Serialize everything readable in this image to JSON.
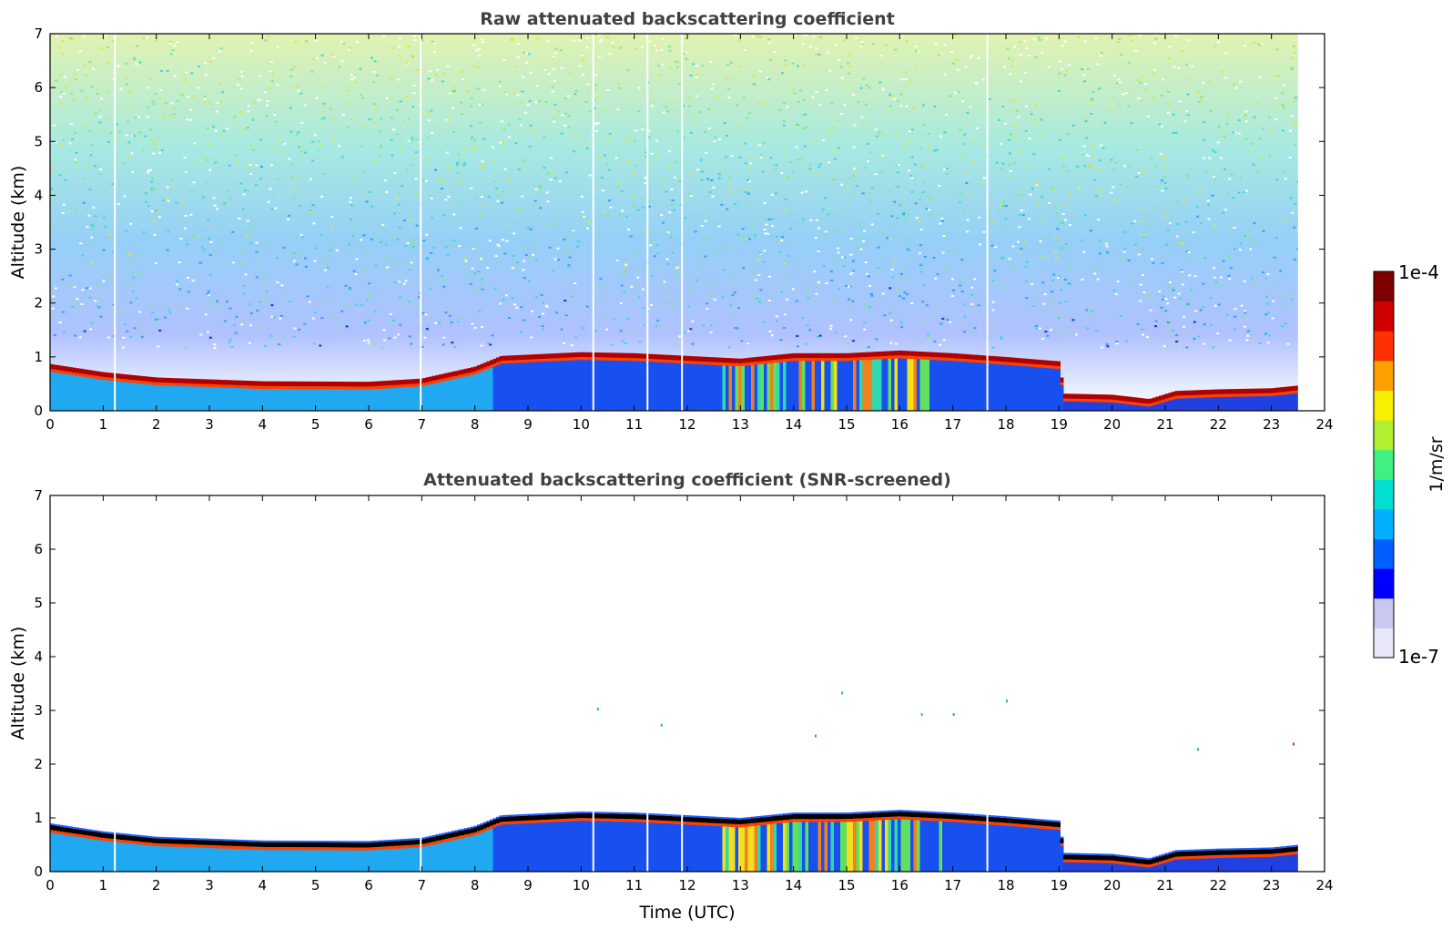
{
  "chart_data": [
    {
      "type": "heatmap",
      "title": "Raw attenuated backscattering coefficient",
      "xlabel": "",
      "ylabel": "Altitude (km)",
      "xlim": [
        0,
        24
      ],
      "ylim": [
        0,
        7
      ],
      "xticks": [
        "0",
        "1",
        "2",
        "3",
        "4",
        "5",
        "6",
        "7",
        "8",
        "9",
        "10",
        "11",
        "12",
        "13",
        "14",
        "15",
        "16",
        "17",
        "18",
        "19",
        "20",
        "21",
        "22",
        "23",
        "24"
      ],
      "yticks": [
        "0",
        "1",
        "2",
        "3",
        "4",
        "5",
        "6",
        "7"
      ],
      "data_end_time": 23.5,
      "layer_top_profile": [
        [
          0,
          0.85
        ],
        [
          1,
          0.7
        ],
        [
          2,
          0.6
        ],
        [
          4,
          0.53
        ],
        [
          6,
          0.52
        ],
        [
          7,
          0.58
        ],
        [
          8,
          0.8
        ],
        [
          8.5,
          1.0
        ],
        [
          10,
          1.07
        ],
        [
          11,
          1.05
        ],
        [
          12,
          1.0
        ],
        [
          13,
          0.95
        ],
        [
          14,
          1.05
        ],
        [
          15,
          1.05
        ],
        [
          16,
          1.1
        ],
        [
          17,
          1.05
        ],
        [
          18,
          0.98
        ],
        [
          19,
          0.9
        ],
        [
          19.1,
          0.3
        ],
        [
          20,
          0.28
        ],
        [
          20.7,
          0.2
        ],
        [
          21.2,
          0.35
        ],
        [
          22,
          0.38
        ],
        [
          23,
          0.4
        ],
        [
          23.5,
          0.45
        ]
      ],
      "gap_times": [
        1.22,
        6.98,
        10.23,
        11.25,
        11.9,
        17.65
      ]
    },
    {
      "type": "heatmap",
      "title": "Attenuated backscattering coefficient (SNR-screened)",
      "xlabel": "Time (UTC)",
      "ylabel": "Altitude (km)",
      "xlim": [
        0,
        24
      ],
      "ylim": [
        0,
        7
      ],
      "xticks": [
        "0",
        "1",
        "2",
        "3",
        "4",
        "5",
        "6",
        "7",
        "8",
        "9",
        "10",
        "11",
        "12",
        "13",
        "14",
        "15",
        "16",
        "17",
        "18",
        "19",
        "20",
        "21",
        "22",
        "23",
        "24"
      ],
      "yticks": [
        "0",
        "1",
        "2",
        "3",
        "4",
        "5",
        "6",
        "7"
      ],
      "data_end_time": 23.5,
      "layer_top_profile": [
        [
          0,
          0.85
        ],
        [
          1,
          0.7
        ],
        [
          2,
          0.6
        ],
        [
          4,
          0.53
        ],
        [
          6,
          0.52
        ],
        [
          7,
          0.58
        ],
        [
          8,
          0.8
        ],
        [
          8.5,
          1.0
        ],
        [
          10,
          1.07
        ],
        [
          11,
          1.05
        ],
        [
          12,
          1.0
        ],
        [
          13,
          0.95
        ],
        [
          14,
          1.05
        ],
        [
          15,
          1.05
        ],
        [
          16,
          1.1
        ],
        [
          17,
          1.05
        ],
        [
          18,
          0.98
        ],
        [
          19,
          0.9
        ],
        [
          19.1,
          0.3
        ],
        [
          20,
          0.28
        ],
        [
          20.7,
          0.2
        ],
        [
          21.2,
          0.35
        ],
        [
          22,
          0.38
        ],
        [
          23,
          0.4
        ],
        [
          23.5,
          0.45
        ]
      ],
      "gap_times": [
        1.22,
        6.98,
        10.23,
        11.25,
        11.9,
        17.65
      ]
    }
  ],
  "colorbar": {
    "label": "1/m/sr",
    "max_label": "1e-4",
    "min_label": "1e-7",
    "colors": [
      "#e8e8f8",
      "#c8c8f0",
      "#0000ff",
      "#0060ff",
      "#00b0ff",
      "#00e0d0",
      "#40f080",
      "#b0f030",
      "#f8f000",
      "#ffa000",
      "#ff3000",
      "#d00000",
      "#800000"
    ]
  },
  "colors": {
    "title_text": "#404040",
    "layer_peak": "#b00000",
    "screened_peak": "#000000"
  }
}
